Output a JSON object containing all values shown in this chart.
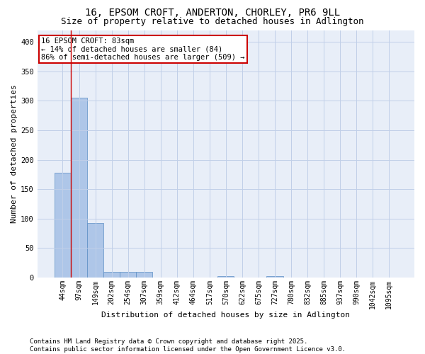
{
  "title_line1": "16, EPSOM CROFT, ANDERTON, CHORLEY, PR6 9LL",
  "title_line2": "Size of property relative to detached houses in Adlington",
  "xlabel": "Distribution of detached houses by size in Adlington",
  "ylabel": "Number of detached properties",
  "footnote_line1": "Contains HM Land Registry data © Crown copyright and database right 2025.",
  "footnote_line2": "Contains public sector information licensed under the Open Government Licence v3.0.",
  "annotation_line1": "16 EPSOM CROFT: 83sqm",
  "annotation_line2": "← 14% of detached houses are smaller (84)",
  "annotation_line3": "86% of semi-detached houses are larger (509) →",
  "bar_labels": [
    "44sqm",
    "97sqm",
    "149sqm",
    "202sqm",
    "254sqm",
    "307sqm",
    "359sqm",
    "412sqm",
    "464sqm",
    "517sqm",
    "570sqm",
    "622sqm",
    "675sqm",
    "727sqm",
    "780sqm",
    "832sqm",
    "885sqm",
    "937sqm",
    "990sqm",
    "1042sqm",
    "1095sqm"
  ],
  "bar_values": [
    178,
    305,
    93,
    9,
    10,
    10,
    0,
    0,
    0,
    0,
    2,
    0,
    0,
    2,
    0,
    0,
    0,
    0,
    0,
    0,
    0
  ],
  "bar_color": "#aec6e8",
  "bar_edge_color": "#5b8ec4",
  "marker_color": "#cc0000",
  "ylim": [
    0,
    420
  ],
  "yticks": [
    0,
    50,
    100,
    150,
    200,
    250,
    300,
    350,
    400
  ],
  "grid_color": "#c0cfe8",
  "bg_color": "#e8eef8",
  "annotation_box_color": "#cc0000",
  "title_fontsize": 10,
  "subtitle_fontsize": 9,
  "axis_label_fontsize": 8,
  "tick_fontsize": 7,
  "annotation_fontsize": 7.5,
  "footnote_fontsize": 6.5
}
